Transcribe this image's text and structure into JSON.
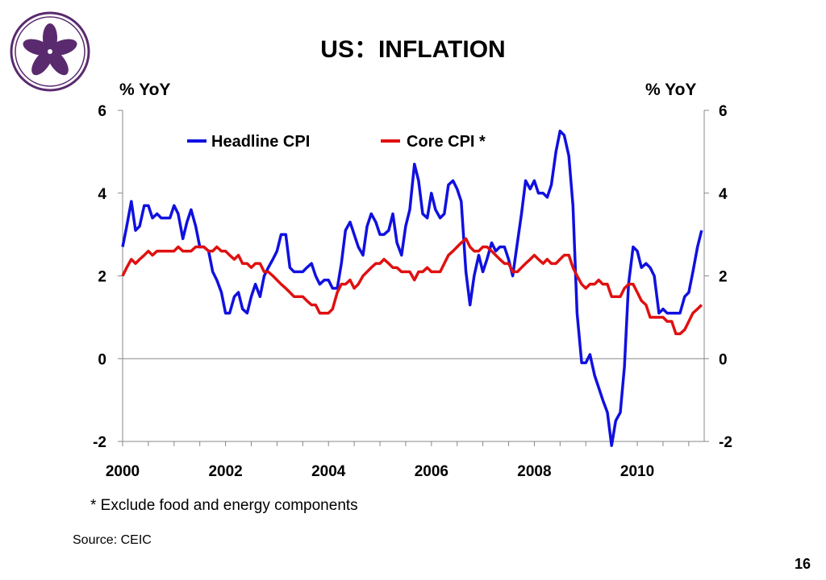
{
  "slide": {
    "title": "US：INFLATION",
    "footnote": "* Exclude food and energy components",
    "source": "Source: CEIC",
    "page_number": "16"
  },
  "colors": {
    "headline": "#1010e0",
    "core": "#e01010",
    "logo": "#5a2a6e"
  },
  "chart_data": {
    "type": "line",
    "title": "",
    "ylabel_left": "% YoY",
    "ylabel_right": "% YoY",
    "ylim": [
      -2,
      6
    ],
    "yticks": [
      -2,
      0,
      2,
      4,
      6
    ],
    "xlim": [
      2000,
      2011.3
    ],
    "xticks": [
      "2000",
      "2002",
      "2004",
      "2006",
      "2008",
      "2010"
    ],
    "legend_position": "top",
    "grid": false,
    "series": [
      {
        "name": "Headline CPI",
        "color": "#1010e0",
        "x": [
          2000.0,
          2000.08,
          2000.17,
          2000.25,
          2000.33,
          2000.42,
          2000.5,
          2000.58,
          2000.67,
          2000.75,
          2000.83,
          2000.92,
          2001.0,
          2001.08,
          2001.17,
          2001.25,
          2001.33,
          2001.42,
          2001.5,
          2001.58,
          2001.67,
          2001.75,
          2001.83,
          2001.92,
          2002.0,
          2002.08,
          2002.17,
          2002.25,
          2002.33,
          2002.42,
          2002.5,
          2002.58,
          2002.67,
          2002.75,
          2002.83,
          2002.92,
          2003.0,
          2003.08,
          2003.17,
          2003.25,
          2003.33,
          2003.42,
          2003.5,
          2003.58,
          2003.67,
          2003.75,
          2003.83,
          2003.92,
          2004.0,
          2004.08,
          2004.17,
          2004.25,
          2004.33,
          2004.42,
          2004.5,
          2004.58,
          2004.67,
          2004.75,
          2004.83,
          2004.92,
          2005.0,
          2005.08,
          2005.17,
          2005.25,
          2005.33,
          2005.42,
          2005.5,
          2005.58,
          2005.67,
          2005.75,
          2005.83,
          2005.92,
          2006.0,
          2006.08,
          2006.17,
          2006.25,
          2006.33,
          2006.42,
          2006.5,
          2006.58,
          2006.67,
          2006.75,
          2006.83,
          2006.92,
          2007.0,
          2007.08,
          2007.17,
          2007.25,
          2007.33,
          2007.42,
          2007.5,
          2007.58,
          2007.67,
          2007.75,
          2007.83,
          2007.92,
          2008.0,
          2008.08,
          2008.17,
          2008.25,
          2008.33,
          2008.42,
          2008.5,
          2008.58,
          2008.67,
          2008.75,
          2008.83,
          2008.92,
          2009.0,
          2009.08,
          2009.17,
          2009.25,
          2009.33,
          2009.42,
          2009.5,
          2009.58,
          2009.67,
          2009.75,
          2009.83,
          2009.92,
          2010.0,
          2010.08,
          2010.17,
          2010.25,
          2010.33,
          2010.42,
          2010.5,
          2010.58,
          2010.67,
          2010.75,
          2010.83,
          2010.92,
          2011.0,
          2011.08,
          2011.17,
          2011.25
        ],
        "values": [
          2.7,
          3.2,
          3.8,
          3.1,
          3.2,
          3.7,
          3.7,
          3.4,
          3.5,
          3.4,
          3.4,
          3.4,
          3.7,
          3.5,
          2.9,
          3.3,
          3.6,
          3.2,
          2.7,
          2.7,
          2.6,
          2.1,
          1.9,
          1.6,
          1.1,
          1.1,
          1.5,
          1.6,
          1.2,
          1.1,
          1.5,
          1.8,
          1.5,
          2.0,
          2.2,
          2.4,
          2.6,
          3.0,
          3.0,
          2.2,
          2.1,
          2.1,
          2.1,
          2.2,
          2.3,
          2.0,
          1.8,
          1.9,
          1.9,
          1.7,
          1.7,
          2.3,
          3.1,
          3.3,
          3.0,
          2.7,
          2.5,
          3.2,
          3.5,
          3.3,
          3.0,
          3.0,
          3.1,
          3.5,
          2.8,
          2.5,
          3.2,
          3.6,
          4.7,
          4.3,
          3.5,
          3.4,
          4.0,
          3.6,
          3.4,
          3.5,
          4.2,
          4.3,
          4.1,
          3.8,
          2.1,
          1.3,
          2.0,
          2.5,
          2.1,
          2.4,
          2.8,
          2.6,
          2.7,
          2.7,
          2.4,
          2.0,
          2.8,
          3.5,
          4.3,
          4.1,
          4.3,
          4.0,
          4.0,
          3.9,
          4.2,
          5.0,
          5.5,
          5.4,
          4.9,
          3.7,
          1.1,
          -0.1,
          -0.1,
          0.1,
          -0.4,
          -0.7,
          -1.0,
          -1.3,
          -2.1,
          -1.5,
          -1.3,
          -0.2,
          1.8,
          2.7,
          2.6,
          2.2,
          2.3,
          2.2,
          2.0,
          1.1,
          1.2,
          1.1,
          1.1,
          1.1,
          1.1,
          1.5,
          1.6,
          2.1,
          2.7,
          3.1
        ]
      },
      {
        "name": "Core CPI *",
        "color": "#e01010",
        "x": [
          2000.0,
          2000.08,
          2000.17,
          2000.25,
          2000.33,
          2000.42,
          2000.5,
          2000.58,
          2000.67,
          2000.75,
          2000.83,
          2000.92,
          2001.0,
          2001.08,
          2001.17,
          2001.25,
          2001.33,
          2001.42,
          2001.5,
          2001.58,
          2001.67,
          2001.75,
          2001.83,
          2001.92,
          2002.0,
          2002.08,
          2002.17,
          2002.25,
          2002.33,
          2002.42,
          2002.5,
          2002.58,
          2002.67,
          2002.75,
          2002.83,
          2002.92,
          2003.0,
          2003.08,
          2003.17,
          2003.25,
          2003.33,
          2003.42,
          2003.5,
          2003.58,
          2003.67,
          2003.75,
          2003.83,
          2003.92,
          2004.0,
          2004.08,
          2004.17,
          2004.25,
          2004.33,
          2004.42,
          2004.5,
          2004.58,
          2004.67,
          2004.75,
          2004.83,
          2004.92,
          2005.0,
          2005.08,
          2005.17,
          2005.25,
          2005.33,
          2005.42,
          2005.5,
          2005.58,
          2005.67,
          2005.75,
          2005.83,
          2005.92,
          2006.0,
          2006.08,
          2006.17,
          2006.25,
          2006.33,
          2006.42,
          2006.5,
          2006.58,
          2006.67,
          2006.75,
          2006.83,
          2006.92,
          2007.0,
          2007.08,
          2007.17,
          2007.25,
          2007.33,
          2007.42,
          2007.5,
          2007.58,
          2007.67,
          2007.75,
          2007.83,
          2007.92,
          2008.0,
          2008.08,
          2008.17,
          2008.25,
          2008.33,
          2008.42,
          2008.5,
          2008.58,
          2008.67,
          2008.75,
          2008.83,
          2008.92,
          2009.0,
          2009.08,
          2009.17,
          2009.25,
          2009.33,
          2009.42,
          2009.5,
          2009.58,
          2009.67,
          2009.75,
          2009.83,
          2009.92,
          2010.0,
          2010.08,
          2010.17,
          2010.25,
          2010.33,
          2010.42,
          2010.5,
          2010.58,
          2010.67,
          2010.75,
          2010.83,
          2010.92,
          2011.0,
          2011.08,
          2011.17,
          2011.25
        ],
        "values": [
          2.0,
          2.2,
          2.4,
          2.3,
          2.4,
          2.5,
          2.6,
          2.5,
          2.6,
          2.6,
          2.6,
          2.6,
          2.6,
          2.7,
          2.6,
          2.6,
          2.6,
          2.7,
          2.7,
          2.7,
          2.6,
          2.6,
          2.7,
          2.6,
          2.6,
          2.5,
          2.4,
          2.5,
          2.3,
          2.3,
          2.2,
          2.3,
          2.3,
          2.1,
          2.1,
          2.0,
          1.9,
          1.8,
          1.7,
          1.6,
          1.5,
          1.5,
          1.5,
          1.4,
          1.3,
          1.3,
          1.1,
          1.1,
          1.1,
          1.2,
          1.6,
          1.8,
          1.8,
          1.9,
          1.7,
          1.8,
          2.0,
          2.1,
          2.2,
          2.3,
          2.3,
          2.4,
          2.3,
          2.2,
          2.2,
          2.1,
          2.1,
          2.1,
          1.9,
          2.1,
          2.1,
          2.2,
          2.1,
          2.1,
          2.1,
          2.3,
          2.5,
          2.6,
          2.7,
          2.8,
          2.9,
          2.7,
          2.6,
          2.6,
          2.7,
          2.7,
          2.6,
          2.5,
          2.4,
          2.3,
          2.3,
          2.1,
          2.1,
          2.2,
          2.3,
          2.4,
          2.5,
          2.4,
          2.3,
          2.4,
          2.3,
          2.3,
          2.4,
          2.5,
          2.5,
          2.2,
          2.0,
          1.8,
          1.7,
          1.8,
          1.8,
          1.9,
          1.8,
          1.8,
          1.5,
          1.5,
          1.5,
          1.7,
          1.8,
          1.8,
          1.6,
          1.4,
          1.3,
          1.0,
          1.0,
          1.0,
          1.0,
          0.9,
          0.9,
          0.6,
          0.6,
          0.7,
          0.9,
          1.1,
          1.2,
          1.3
        ]
      }
    ]
  }
}
